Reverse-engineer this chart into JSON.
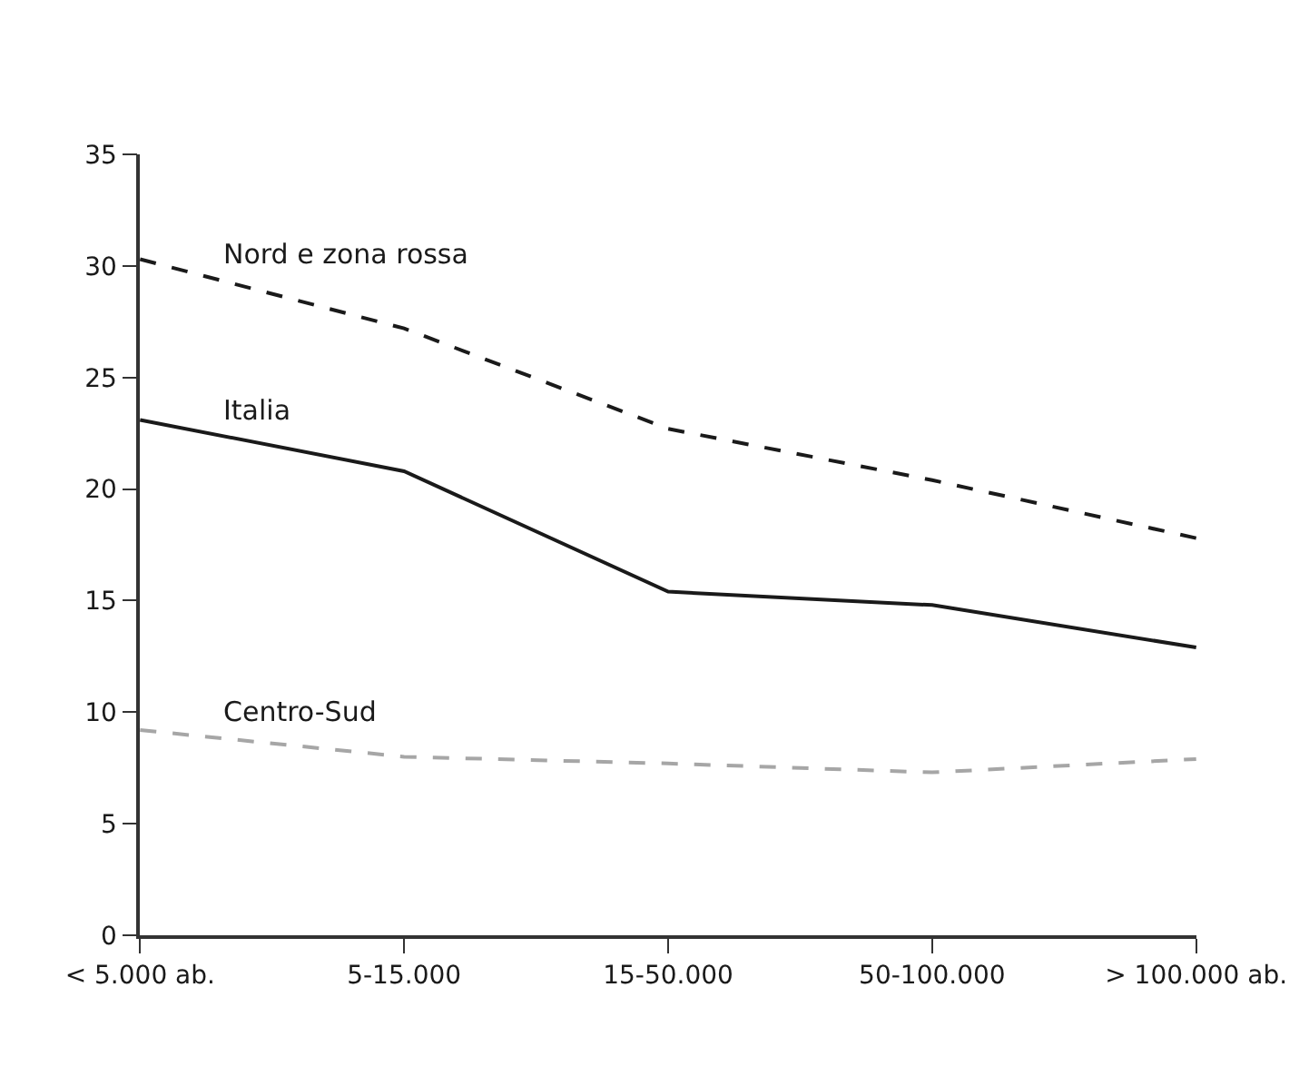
{
  "chart_data": {
    "type": "line",
    "categories": [
      "< 5.000 ab.",
      "5-15.000",
      "15-50.000",
      "50-100.000",
      "> 100.000 ab."
    ],
    "series": [
      {
        "name": "Nord e zona rossa",
        "color": "#1a1a1a",
        "line_style": "dashed",
        "values": [
          30.3,
          27.2,
          22.7,
          20.4,
          17.8
        ]
      },
      {
        "name": "Italia",
        "color": "#1a1a1a",
        "line_style": "solid",
        "values": [
          23.1,
          20.8,
          15.4,
          14.8,
          12.9
        ]
      },
      {
        "name": "Centro-Sud",
        "color": "#a6a6a6",
        "line_style": "dashed",
        "values": [
          9.2,
          8.0,
          7.7,
          7.3,
          7.9
        ]
      }
    ],
    "ylim": [
      0,
      35
    ],
    "yticks": [
      0,
      5,
      10,
      15,
      20,
      25,
      30,
      35
    ],
    "grid": false,
    "legend": false,
    "marker": "none"
  }
}
